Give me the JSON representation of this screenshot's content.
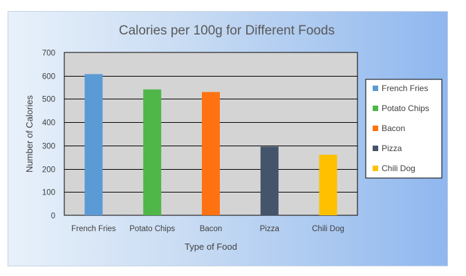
{
  "chart_data": {
    "type": "bar",
    "title": "Calories per 100g for Different Foods",
    "xlabel": "Type of Food",
    "ylabel": "Number of Calories",
    "categories": [
      "French Fries",
      "Potato Chips",
      "Bacon",
      "Pizza",
      "Chili Dog"
    ],
    "values": [
      607,
      541,
      530,
      295,
      260
    ],
    "colors": [
      "#5b9bd5",
      "#4fb748",
      "#ff7211",
      "#44546a",
      "#ffc000"
    ],
    "ylim": [
      0,
      700
    ],
    "yticks": [
      0,
      100,
      200,
      300,
      400,
      500,
      600,
      700
    ],
    "grid": true,
    "plot_background": "#d4d4d4",
    "legend": {
      "placement": "right",
      "entries": [
        "French Fries",
        "Potato Chips",
        "Bacon",
        "Pizza",
        "Chili Dog"
      ]
    }
  }
}
